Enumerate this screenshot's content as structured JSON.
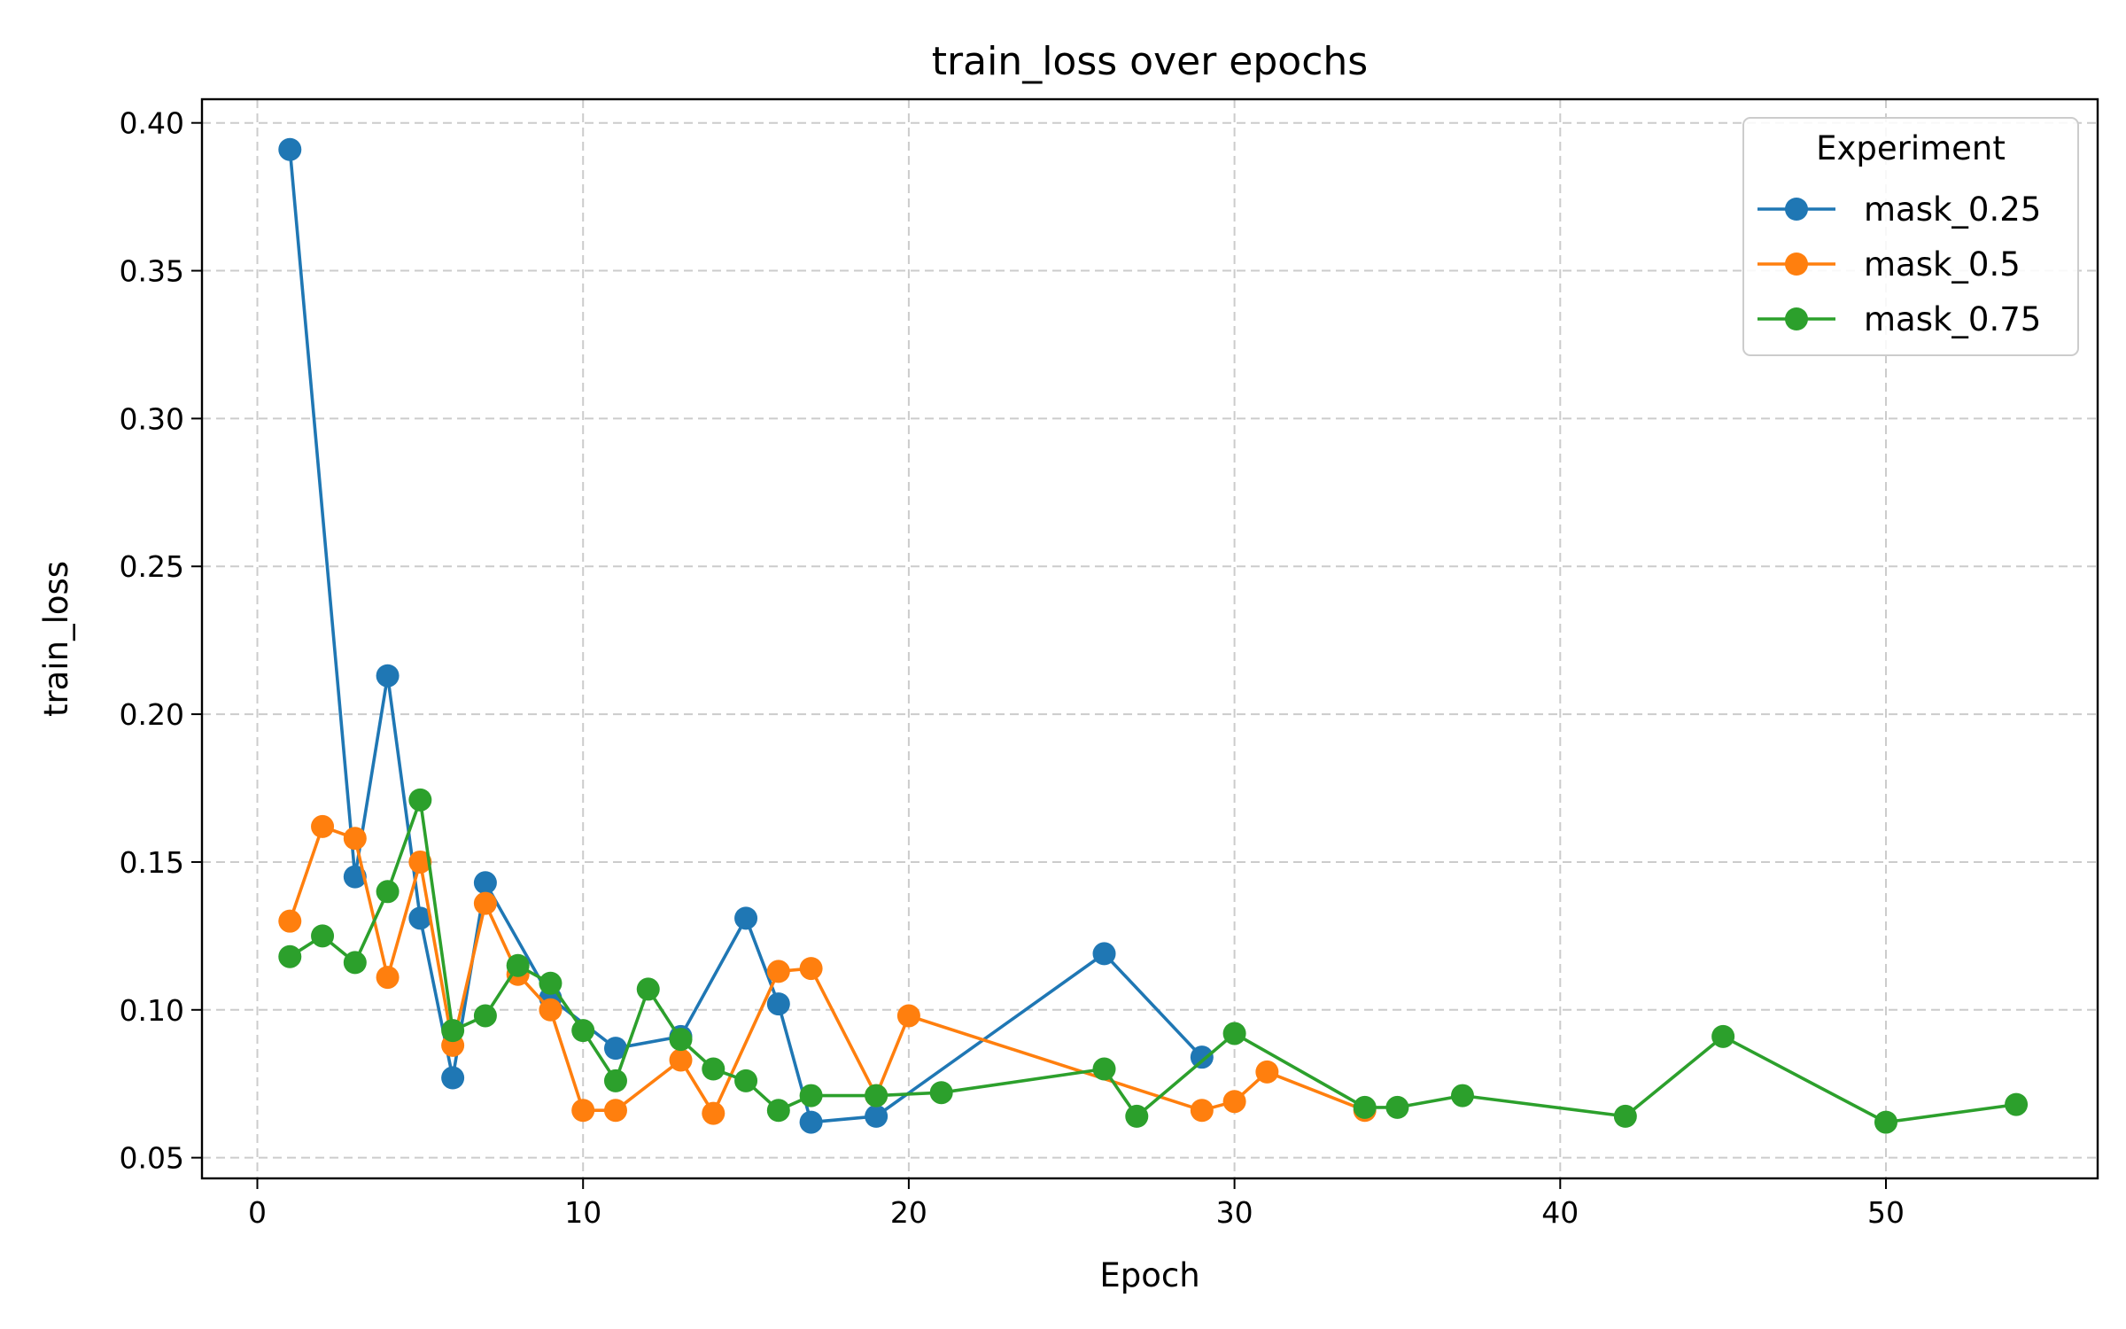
{
  "chart_data": {
    "type": "line",
    "title": "train_loss over epochs",
    "xlabel": "Epoch",
    "ylabel": "train_loss",
    "xlim": [
      -1.7,
      56.5
    ],
    "ylim": [
      0.043,
      0.408
    ],
    "xticks": [
      0,
      10,
      20,
      30,
      40,
      50
    ],
    "xtick_labels": [
      "0",
      "10",
      "20",
      "30",
      "40",
      "50"
    ],
    "yticks": [
      0.05,
      0.1,
      0.15,
      0.2,
      0.25,
      0.3,
      0.35,
      0.4
    ],
    "ytick_labels": [
      "0.05",
      "0.10",
      "0.15",
      "0.20",
      "0.25",
      "0.30",
      "0.35",
      "0.40"
    ],
    "grid": true,
    "legend": {
      "title": "Experiment",
      "placement": "top-right"
    },
    "series": [
      {
        "name": "mask_0.25",
        "color": "#1f77b4",
        "points": [
          [
            1,
            0.391
          ],
          [
            3,
            0.145
          ],
          [
            4,
            0.213
          ],
          [
            5,
            0.131
          ],
          [
            6,
            0.077
          ],
          [
            7,
            0.143
          ],
          [
            9,
            0.104
          ],
          [
            11,
            0.087
          ],
          [
            13,
            0.091
          ],
          [
            15,
            0.131
          ],
          [
            16,
            0.102
          ],
          [
            17,
            0.062
          ],
          [
            19,
            0.064
          ],
          [
            26,
            0.119
          ],
          [
            29,
            0.084
          ]
        ]
      },
      {
        "name": "mask_0.5",
        "color": "#ff7f0e",
        "points": [
          [
            1,
            0.13
          ],
          [
            2,
            0.162
          ],
          [
            3,
            0.158
          ],
          [
            4,
            0.111
          ],
          [
            5,
            0.15
          ],
          [
            6,
            0.088
          ],
          [
            7,
            0.136
          ],
          [
            8,
            0.112
          ],
          [
            9,
            0.1
          ],
          [
            10,
            0.066
          ],
          [
            11,
            0.066
          ],
          [
            13,
            0.083
          ],
          [
            14,
            0.065
          ],
          [
            16,
            0.113
          ],
          [
            17,
            0.114
          ],
          [
            19,
            0.071
          ],
          [
            20,
            0.098
          ],
          [
            29,
            0.066
          ],
          [
            30,
            0.069
          ],
          [
            31,
            0.079
          ],
          [
            34,
            0.066
          ]
        ]
      },
      {
        "name": "mask_0.75",
        "color": "#2ca02c",
        "points": [
          [
            1,
            0.118
          ],
          [
            2,
            0.125
          ],
          [
            3,
            0.116
          ],
          [
            4,
            0.14
          ],
          [
            5,
            0.171
          ],
          [
            6,
            0.093
          ],
          [
            7,
            0.098
          ],
          [
            8,
            0.115
          ],
          [
            9,
            0.109
          ],
          [
            10,
            0.093
          ],
          [
            11,
            0.076
          ],
          [
            12,
            0.107
          ],
          [
            13,
            0.09
          ],
          [
            14,
            0.08
          ],
          [
            15,
            0.076
          ],
          [
            16,
            0.066
          ],
          [
            17,
            0.071
          ],
          [
            19,
            0.071
          ],
          [
            21,
            0.072
          ],
          [
            26,
            0.08
          ],
          [
            27,
            0.064
          ],
          [
            30,
            0.092
          ],
          [
            34,
            0.067
          ],
          [
            35,
            0.067
          ],
          [
            37,
            0.071
          ],
          [
            42,
            0.064
          ],
          [
            45,
            0.091
          ],
          [
            50,
            0.062
          ],
          [
            54,
            0.068
          ]
        ]
      }
    ]
  }
}
